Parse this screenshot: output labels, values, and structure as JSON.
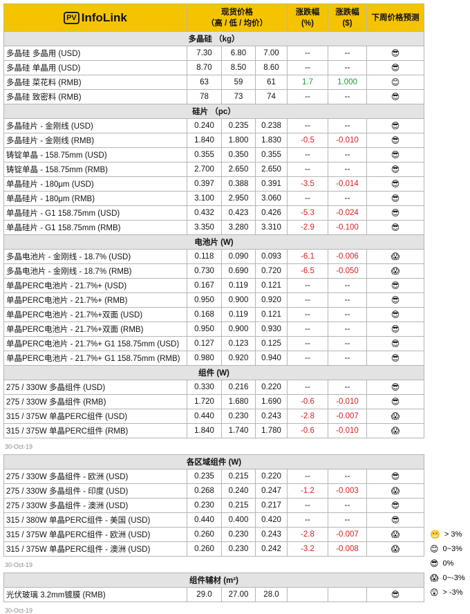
{
  "header": {
    "logo_badge": "PV",
    "logo": "InfoLink",
    "price": "现货价格",
    "price_sub": "（高 / 低 / 均价）",
    "change_pct": "涨跌幅",
    "change_pct_unit": "(%)",
    "change_usd": "涨跌幅",
    "change_usd_unit": "($)",
    "forecast": "下周价格预测"
  },
  "tables": [
    {
      "sections": [
        {
          "title": "多晶硅 （kg）",
          "rows": [
            [
              "多晶硅 多晶用 (USD)",
              "7.30",
              "6.80",
              "7.00",
              "--",
              "--",
              "😎"
            ],
            [
              "多晶硅 单晶用 (USD)",
              "8.70",
              "8.50",
              "8.60",
              "--",
              "--",
              "😎"
            ],
            [
              "多晶硅 菜花料 (RMB)",
              "63",
              "59",
              "61",
              "1.7",
              "1.000",
              "😊"
            ],
            [
              "多晶硅 致密料 (RMB)",
              "78",
              "73",
              "74",
              "--",
              "--",
              "😎"
            ]
          ]
        },
        {
          "title": "硅片 （pc）",
          "rows": [
            [
              "多晶硅片 - 金刚线 (USD)",
              "0.240",
              "0.235",
              "0.238",
              "--",
              "--",
              "😎"
            ],
            [
              "多晶硅片 - 金刚线 (RMB)",
              "1.840",
              "1.800",
              "1.830",
              "-0.5",
              "-0.010",
              "😎"
            ],
            [
              "铸锭单晶 - 158.75mm (USD)",
              "0.355",
              "0.350",
              "0.355",
              "--",
              "--",
              "😎"
            ],
            [
              "铸锭单晶 - 158.75mm (RMB)",
              "2.700",
              "2.650",
              "2.650",
              "--",
              "--",
              "😎"
            ],
            [
              "单晶硅片 - 180μm (USD)",
              "0.397",
              "0.388",
              "0.391",
              "-3.5",
              "-0.014",
              "😎"
            ],
            [
              "单晶硅片 - 180μm (RMB)",
              "3.100",
              "2.950",
              "3.060",
              "--",
              "--",
              "😎"
            ],
            [
              "单晶硅片 - G1 158.75mm (USD)",
              "0.432",
              "0.423",
              "0.426",
              "-5.3",
              "-0.024",
              "😎"
            ],
            [
              "单晶硅片 - G1 158.75mm (RMB)",
              "3.350",
              "3.280",
              "3.310",
              "-2.9",
              "-0.100",
              "😎"
            ]
          ]
        },
        {
          "title": "电池片 (W)",
          "rows": [
            [
              "多晶电池片 - 金刚线 - 18.7% (USD)",
              "0.118",
              "0.090",
              "0.093",
              "-6.1",
              "-0.006",
              "😱"
            ],
            [
              "多晶电池片 - 金刚线 - 18.7% (RMB)",
              "0.730",
              "0.690",
              "0.720",
              "-6.5",
              "-0.050",
              "😱"
            ],
            [
              "单晶PERC电池片 - 21.7%+ (USD)",
              "0.167",
              "0.119",
              "0.121",
              "--",
              "--",
              "😎"
            ],
            [
              "单晶PERC电池片 - 21.7%+ (RMB)",
              "0.950",
              "0.900",
              "0.920",
              "--",
              "--",
              "😎"
            ],
            [
              "单晶PERC电池片 - 21.7%+双面 (USD)",
              "0.168",
              "0.119",
              "0.121",
              "--",
              "--",
              "😎"
            ],
            [
              "单晶PERC电池片 - 21.7%+双面 (RMB)",
              "0.950",
              "0.900",
              "0.930",
              "--",
              "--",
              "😎"
            ],
            [
              "单晶PERC电池片 - 21.7%+ G1 158.75mm (USD)",
              "0.127",
              "0.123",
              "0.125",
              "--",
              "--",
              "😎"
            ],
            [
              "单晶PERC电池片 - 21.7%+ G1 158.75mm (RMB)",
              "0.980",
              "0.920",
              "0.940",
              "--",
              "--",
              "😎"
            ]
          ]
        },
        {
          "title": "组件 (W)",
          "rows": [
            [
              "275 / 330W 多晶组件 (USD)",
              "0.330",
              "0.216",
              "0.220",
              "--",
              "--",
              "😎"
            ],
            [
              "275 / 330W 多晶组件 (RMB)",
              "1.720",
              "1.680",
              "1.690",
              "-0.6",
              "-0.010",
              "😎"
            ],
            [
              "315 / 375W 单晶PERC组件 (USD)",
              "0.440",
              "0.230",
              "0.243",
              "-2.8",
              "-0.007",
              "😱"
            ],
            [
              "315 / 375W 单晶PERC组件 (RMB)",
              "1.840",
              "1.740",
              "1.780",
              "-0.6",
              "-0.010",
              "😱"
            ]
          ]
        }
      ],
      "date": "30-Oct-19"
    },
    {
      "sections": [
        {
          "title": "各区域组件 (W)",
          "rows": [
            [
              "275 / 330W 多晶组件 - 欧洲 (USD)",
              "0.235",
              "0.215",
              "0.220",
              "--",
              "--",
              "😎"
            ],
            [
              "275 / 330W 多晶组件 - 印度 (USD)",
              "0.268",
              "0.240",
              "0.247",
              "-1.2",
              "-0.003",
              "😱"
            ],
            [
              "275 / 330W 多晶组件 - 澳洲 (USD)",
              "0.230",
              "0.215",
              "0.217",
              "--",
              "--",
              "😎"
            ],
            [
              "315 / 380W 单晶PERC组件 - 美国 (USD)",
              "0.440",
              "0.400",
              "0.420",
              "--",
              "--",
              "😎"
            ],
            [
              "315 / 375W 单晶PERC组件 - 欧洲 (USD)",
              "0.260",
              "0.230",
              "0.243",
              "-2.8",
              "-0.007",
              "😱"
            ],
            [
              "315 / 375W 单晶PERC组件 - 澳洲 (USD)",
              "0.260",
              "0.230",
              "0.242",
              "-3.2",
              "-0.008",
              "😱"
            ]
          ]
        }
      ],
      "date": "30-Oct-19"
    },
    {
      "sections": [
        {
          "title": "组件辅材 (m²)",
          "rows": [
            [
              "光伏玻璃 3.2mm镀膜 (RMB)",
              "29.0",
              "27.00",
              "28.0",
              "",
              "",
              "😎"
            ]
          ]
        }
      ],
      "date": "30-Oct-19"
    }
  ],
  "legend": [
    {
      "icon": "😬",
      "label": "> 3%"
    },
    {
      "icon": "😊",
      "label": "0~3%"
    },
    {
      "icon": "😎",
      "label": "0%"
    },
    {
      "icon": "😱",
      "label": "0~-3%"
    },
    {
      "icon": "😲",
      "label": "> -3%"
    }
  ]
}
